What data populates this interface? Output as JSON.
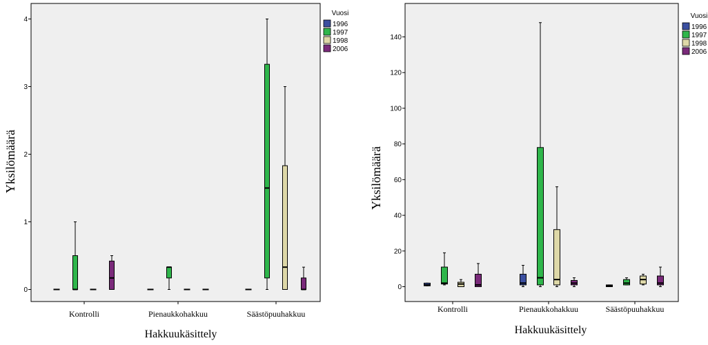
{
  "chart_data": [
    {
      "type": "boxplot",
      "xlabel": "Hakkuukäsittely",
      "ylabel": "Yksilömäärä",
      "ylim": [
        -0.2,
        4.15
      ],
      "yticks": [
        "0",
        "1",
        "2",
        "3",
        "4"
      ],
      "grid": false,
      "legend": {
        "title": "Vuosi",
        "position": "top-right"
      },
      "categories": [
        "Kontrolli",
        "Pienaukkohakkuu",
        "Säästöpuuhakkuu"
      ],
      "series": [
        {
          "name": "1996",
          "color": "#3b4fa0",
          "boxes": [
            {
              "min": 0,
              "q1": 0,
              "median": 0,
              "q3": 0,
              "max": 0
            },
            {
              "min": 0,
              "q1": 0,
              "median": 0,
              "q3": 0,
              "max": 0
            },
            {
              "min": 0,
              "q1": 0,
              "median": 0,
              "q3": 0,
              "max": 0
            }
          ]
        },
        {
          "name": "1997",
          "color": "#2fb64b",
          "boxes": [
            {
              "min": 0,
              "q1": 0,
              "median": 0,
              "q3": 0.5,
              "max": 1
            },
            {
              "min": 0,
              "q1": 0.17,
              "median": 0.33,
              "q3": 0.33,
              "max": 0.33
            },
            {
              "min": 0,
              "q1": 0.17,
              "median": 1.5,
              "q3": 3.33,
              "max": 4
            }
          ]
        },
        {
          "name": "1998",
          "color": "#ded8a8",
          "boxes": [
            {
              "min": 0,
              "q1": 0,
              "median": 0,
              "q3": 0,
              "max": 0
            },
            {
              "min": 0,
              "q1": 0,
              "median": 0,
              "q3": 0,
              "max": 0
            },
            {
              "min": 0,
              "q1": 0,
              "median": 0.33,
              "q3": 1.83,
              "max": 3
            }
          ]
        },
        {
          "name": "2006",
          "color": "#7a2a7a",
          "boxes": [
            {
              "min": 0,
              "q1": 0,
              "median": 0.17,
              "q3": 0.42,
              "max": 0.5
            },
            {
              "min": 0,
              "q1": 0,
              "median": 0,
              "q3": 0,
              "max": 0
            },
            {
              "min": 0,
              "q1": 0,
              "median": 0,
              "q3": 0.17,
              "max": 0.33
            }
          ]
        }
      ]
    },
    {
      "type": "boxplot",
      "xlabel": "Hakkuukäsittely",
      "ylabel": "Yksilömäärä",
      "ylim": [
        -5,
        155
      ],
      "yticks": [
        "0",
        "20",
        "40",
        "60",
        "80",
        "100",
        "120",
        "140"
      ],
      "grid": false,
      "legend": {
        "title": "Vuosi",
        "position": "top-right"
      },
      "categories": [
        "Kontrolli",
        "Pienaukkohakkuu",
        "Säästöpuuhakkuu"
      ],
      "series": [
        {
          "name": "1996",
          "color": "#3b4fa0",
          "boxes": [
            {
              "min": 0.5,
              "q1": 0.5,
              "median": 1,
              "q3": 2,
              "max": 2
            },
            {
              "min": 0,
              "q1": 1,
              "median": 2,
              "q3": 7,
              "max": 12
            },
            {
              "min": 0,
              "q1": 0,
              "median": 0.5,
              "q3": 1,
              "max": 1
            }
          ]
        },
        {
          "name": "1997",
          "color": "#2fb64b",
          "boxes": [
            {
              "min": 1,
              "q1": 1.5,
              "median": 2,
              "q3": 11,
              "max": 19
            },
            {
              "min": 0,
              "q1": 1,
              "median": 5,
              "q3": 78,
              "max": 148
            },
            {
              "min": 1,
              "q1": 1,
              "median": 2,
              "q3": 4,
              "max": 5
            }
          ]
        },
        {
          "name": "1998",
          "color": "#ded8a8",
          "boxes": [
            {
              "min": 0,
              "q1": 0,
              "median": 1.5,
              "q3": 2.5,
              "max": 4
            },
            {
              "min": 0,
              "q1": 1,
              "median": 4,
              "q3": 32,
              "max": 56
            },
            {
              "min": 1,
              "q1": 1.5,
              "median": 4,
              "q3": 6,
              "max": 7
            }
          ]
        },
        {
          "name": "2006",
          "color": "#7a2a7a",
          "boxes": [
            {
              "min": 0,
              "q1": 0,
              "median": 1,
              "q3": 7,
              "max": 13
            },
            {
              "min": 0,
              "q1": 1,
              "median": 2,
              "q3": 3.5,
              "max": 5
            },
            {
              "min": 0,
              "q1": 1,
              "median": 2,
              "q3": 6,
              "max": 11
            }
          ]
        }
      ]
    }
  ]
}
